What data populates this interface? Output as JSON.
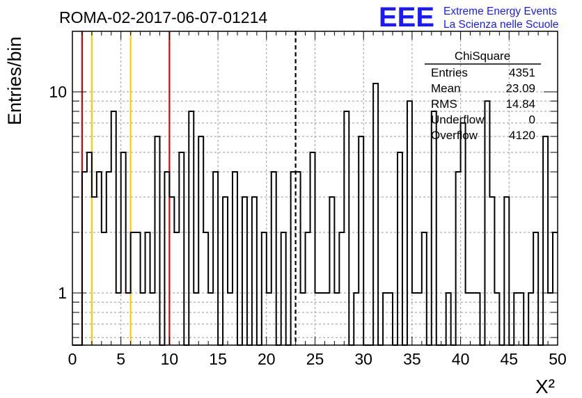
{
  "header": {
    "run_title": "ROMA-02-2017-06-07-01214",
    "logo_text": "EEE",
    "logo_line1": "Extreme Energy Events",
    "logo_line2": "La Scienza nelle Scuole"
  },
  "stats": {
    "title": "ChiSquare",
    "rows": [
      {
        "label": "Entries",
        "value": "4351"
      },
      {
        "label": "Mean",
        "value": "23.09"
      },
      {
        "label": "RMS",
        "value": "14.84"
      },
      {
        "label": "Underflow",
        "value": "0"
      },
      {
        "label": "Overflow",
        "value": "4120"
      }
    ]
  },
  "colors": {
    "logo": "#1a1aff",
    "red_line": "#dd0000",
    "yellow_line": "#ffcc00",
    "histogram": "#000000",
    "grid": "#9a9a9a"
  },
  "chart_data": {
    "type": "histogram",
    "xlabel": "X²",
    "ylabel": "Entries/bin",
    "xlim": [
      0,
      50
    ],
    "ylim": [
      0.55,
      20
    ],
    "yscale": "log",
    "grid": true,
    "bin_width": 0.5,
    "x_ticks": [
      "0",
      "5",
      "10",
      "15",
      "20",
      "25",
      "30",
      "35",
      "40",
      "45",
      "50"
    ],
    "y_ticks": [
      {
        "value": 1,
        "label": "1"
      },
      {
        "value": 10,
        "label": "10"
      }
    ],
    "vertical_lines": [
      {
        "x": 1,
        "color": "red",
        "style": "solid"
      },
      {
        "x": 2,
        "color": "yellow",
        "style": "solid"
      },
      {
        "x": 6,
        "color": "yellow",
        "style": "solid"
      },
      {
        "x": 10,
        "color": "red",
        "style": "solid"
      },
      {
        "x": 23,
        "color": "black",
        "style": "dashed"
      }
    ],
    "counts": [
      0,
      0,
      4,
      5,
      3,
      4,
      2,
      4,
      8,
      1,
      5,
      1,
      2,
      2,
      1,
      2,
      1,
      6,
      0,
      4,
      3,
      2,
      5,
      0,
      8,
      1,
      6,
      2,
      1,
      4,
      0,
      3,
      1,
      4,
      0,
      3,
      0,
      3,
      0,
      2,
      1,
      4,
      0,
      2,
      0,
      4,
      4,
      1,
      2,
      5,
      1,
      1,
      1,
      3,
      1,
      2,
      8,
      0,
      1,
      6,
      0,
      0,
      11,
      0,
      1,
      1,
      0,
      5,
      0,
      9,
      1,
      1,
      2,
      0,
      8,
      0,
      0,
      1,
      0,
      4,
      7,
      1,
      1,
      1,
      0,
      9,
      3,
      1,
      0,
      3,
      0,
      1,
      1,
      0,
      1,
      2,
      0,
      6,
      1,
      2
    ]
  }
}
